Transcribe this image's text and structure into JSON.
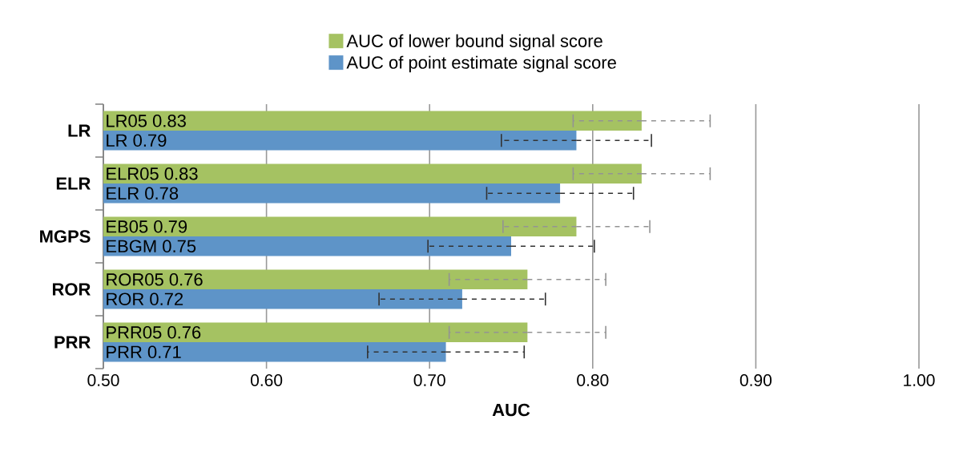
{
  "chart_data": {
    "type": "bar",
    "orientation": "horizontal",
    "xlabel": "AUC",
    "categories": [
      "LR",
      "ELR",
      "MGPS",
      "ROR",
      "PRR"
    ],
    "series": [
      {
        "name": "AUC of lower bound signal score",
        "color": "#a5c262",
        "values": [
          0.83,
          0.83,
          0.79,
          0.76,
          0.76
        ],
        "value_labels": [
          "LR05 0.83",
          "ELR05 0.83",
          "EB05 0.79",
          "ROR05 0.76",
          "PRR05 0.76"
        ],
        "errors": [
          0.042,
          0.042,
          0.045,
          0.048,
          0.048
        ]
      },
      {
        "name": "AUC of point estimate signal score",
        "color": "#5e94c8",
        "values": [
          0.79,
          0.78,
          0.75,
          0.72,
          0.71
        ],
        "value_labels": [
          "LR 0.79",
          "ELR 0.78",
          "EBGM 0.75",
          "ROR 0.72",
          "PRR 0.71"
        ],
        "errors": [
          0.046,
          0.045,
          0.051,
          0.051,
          0.048
        ]
      }
    ],
    "xlim": [
      0.5,
      1.0
    ],
    "xticks": [
      {
        "value": 0.5,
        "label": "0.50"
      },
      {
        "value": 0.6,
        "label": "0.60"
      },
      {
        "value": 0.7,
        "label": "0.70"
      },
      {
        "value": 0.8,
        "label": "0.80"
      },
      {
        "value": 0.9,
        "label": "0.90"
      },
      {
        "value": 1.0,
        "label": "1.00"
      }
    ],
    "grid": "x",
    "legend": "top"
  }
}
